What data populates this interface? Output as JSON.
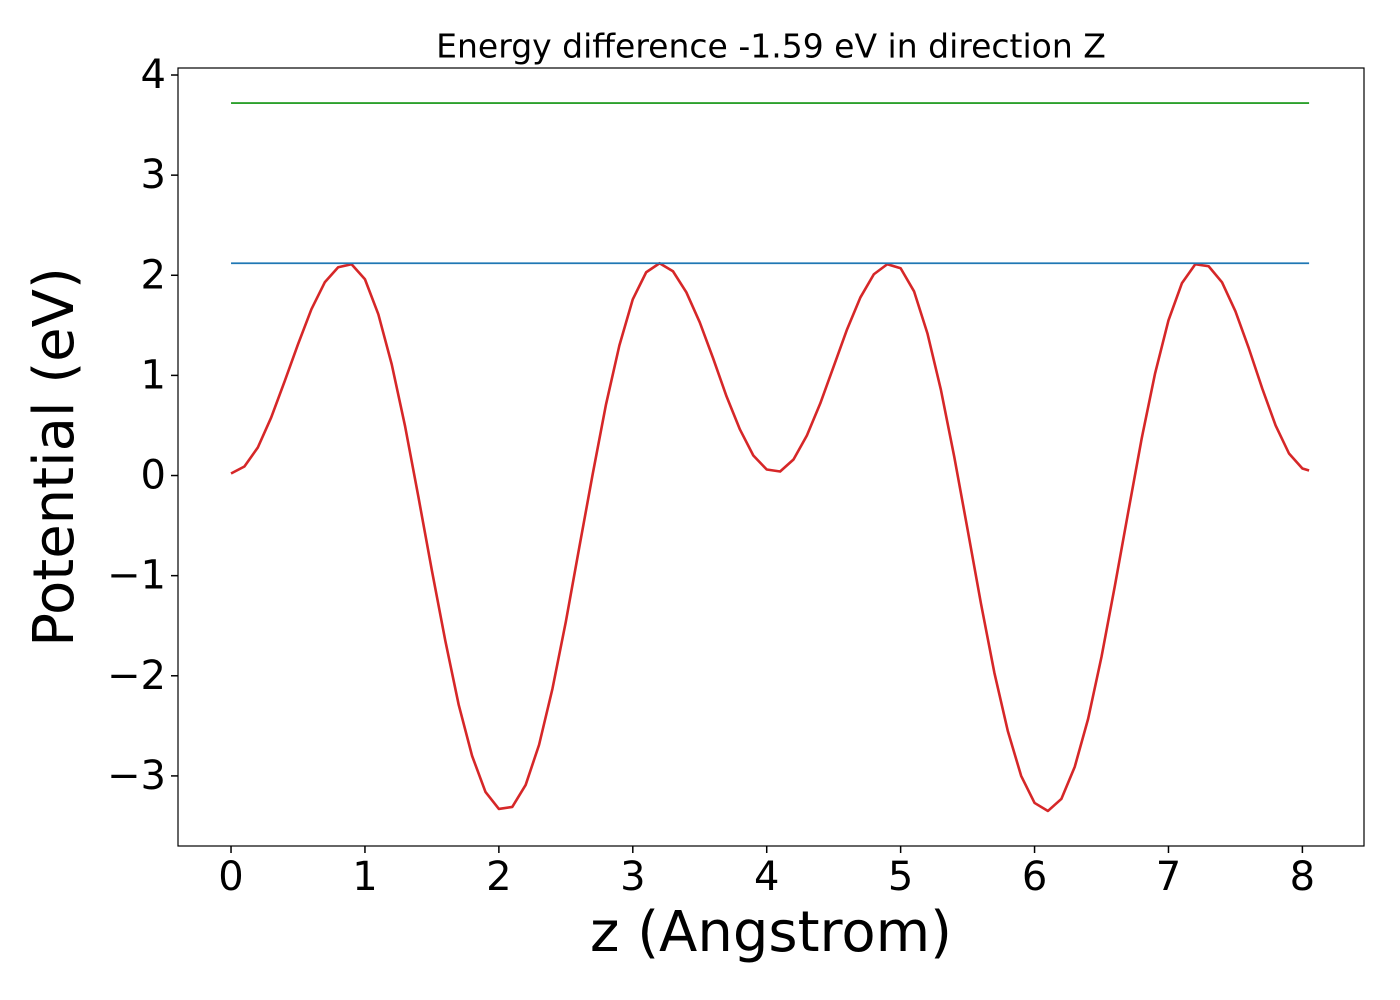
{
  "chart_data": {
    "type": "line",
    "title": "Energy difference -1.59 eV in direction Z",
    "xlabel": "z (Angstrom)",
    "ylabel": "Potential (eV)",
    "xlim": [
      -0.396,
      8.46
    ],
    "ylim": [
      -3.7,
      4.07
    ],
    "xticks": [
      0,
      1,
      2,
      3,
      4,
      5,
      6,
      7,
      8
    ],
    "yticks": [
      {
        "value": -3,
        "label": "−3"
      },
      {
        "value": -2,
        "label": "−2"
      },
      {
        "value": -1,
        "label": "−1"
      },
      0,
      1,
      2,
      3,
      4
    ],
    "grid": false,
    "series": [
      {
        "color": "#d62728",
        "x": [
          0,
          0.1,
          0.2,
          0.3,
          0.4,
          0.5,
          0.6,
          0.7,
          0.8,
          0.9,
          1.0,
          1.1,
          1.2,
          1.3,
          1.4,
          1.5,
          1.6,
          1.7,
          1.8,
          1.9,
          2.0,
          2.1,
          2.2,
          2.3,
          2.4,
          2.5,
          2.6,
          2.7,
          2.8,
          2.9,
          3.0,
          3.1,
          3.2,
          3.3,
          3.4,
          3.5,
          3.6,
          3.7,
          3.8,
          3.9,
          4.0,
          4.1,
          4.2,
          4.3,
          4.4,
          4.5,
          4.6,
          4.7,
          4.8,
          4.9,
          5.0,
          5.1,
          5.2,
          5.3,
          5.4,
          5.5,
          5.6,
          5.7,
          5.8,
          5.9,
          6.0,
          6.1,
          6.2,
          6.3,
          6.4,
          6.5,
          6.6,
          6.7,
          6.8,
          6.9,
          7.0,
          7.1,
          7.2,
          7.3,
          7.4,
          7.5,
          7.6,
          7.7,
          7.8,
          7.9,
          8.0,
          8.05
        ],
        "values": [
          0.02,
          0.09,
          0.28,
          0.58,
          0.94,
          1.31,
          1.66,
          1.93,
          2.08,
          2.11,
          1.96,
          1.61,
          1.11,
          0.49,
          -0.22,
          -0.95,
          -1.65,
          -2.29,
          -2.8,
          -3.16,
          -3.33,
          -3.31,
          -3.09,
          -2.69,
          -2.13,
          -1.46,
          -0.72,
          0.01,
          0.71,
          1.3,
          1.76,
          2.03,
          2.12,
          2.04,
          1.83,
          1.53,
          1.17,
          0.79,
          0.46,
          0.2,
          0.06,
          0.04,
          0.16,
          0.4,
          0.72,
          1.09,
          1.46,
          1.78,
          2.01,
          2.11,
          2.07,
          1.84,
          1.42,
          0.86,
          0.19,
          -0.54,
          -1.28,
          -1.97,
          -2.55,
          -3.0,
          -3.27,
          -3.35,
          -3.23,
          -2.91,
          -2.43,
          -1.81,
          -1.1,
          -0.36,
          0.37,
          1.02,
          1.55,
          1.92,
          2.11,
          2.09,
          1.93,
          1.64,
          1.27,
          0.87,
          0.5,
          0.22,
          0.07,
          0.05
        ]
      },
      {
        "color": "#1f77b4",
        "x": [
          0,
          8.05
        ],
        "values": [
          2.12,
          2.12
        ]
      },
      {
        "color": "#2ca02c",
        "x": [
          0,
          8.05
        ],
        "values": [
          3.72,
          3.72
        ]
      }
    ]
  }
}
